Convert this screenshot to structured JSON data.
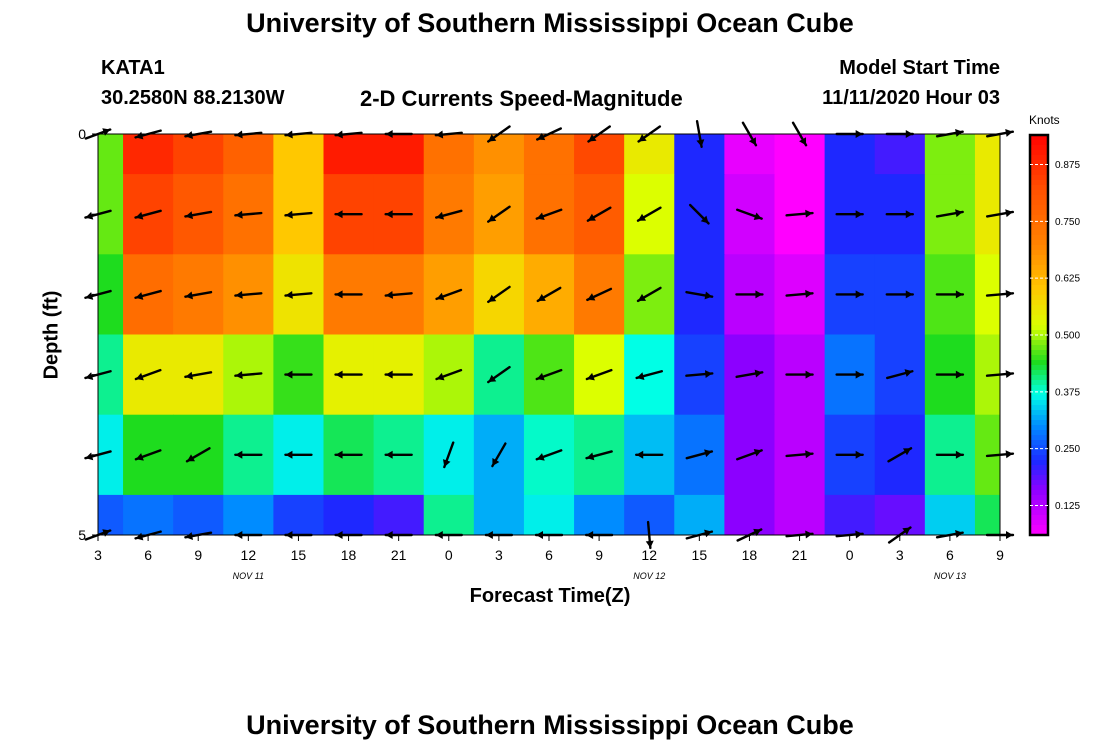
{
  "title_top": "University of Southern Mississippi Ocean Cube",
  "title_bottom": "University of Southern Mississippi Ocean Cube",
  "station": {
    "id": "KATA1",
    "coords": "30.2580N 88.2130W"
  },
  "model": {
    "label": "Model Start Time",
    "value": "11/11/2020 Hour 03"
  },
  "colorbar": {
    "title": "Knots",
    "ticks": [
      "0.875",
      "0.750",
      "0.625",
      "0.500",
      "0.375",
      "0.250",
      "0.125"
    ]
  },
  "chart_data": {
    "type": "heatmap",
    "title": "2-D Currents Speed-Magnitude",
    "xlabel": "Forecast Time(Z)",
    "ylabel": "Depth (ft)",
    "x_ticks": [
      "3",
      "6",
      "9",
      "12",
      "15",
      "18",
      "21",
      "0",
      "3",
      "6",
      "9",
      "12",
      "15",
      "18",
      "21",
      "0",
      "3",
      "6",
      "9"
    ],
    "date_labels": [
      "NOV 11",
      "NOV 12",
      "NOV 13"
    ],
    "date_label_tick_index": [
      3,
      11,
      17
    ],
    "y_ticks": [
      "0",
      "5"
    ],
    "y_range": [
      0,
      5
    ],
    "units": "Knots",
    "value_range": [
      0.06,
      0.94
    ],
    "depth_levels": [
      0,
      1,
      2,
      3,
      4,
      5
    ],
    "time_hours": [
      0,
      3,
      6,
      9,
      12,
      15,
      18,
      21,
      24,
      27,
      30,
      33,
      36,
      39,
      42,
      45,
      48,
      51,
      54
    ],
    "speed": [
      [
        0.47,
        0.88,
        0.84,
        0.78,
        0.6,
        0.9,
        0.9,
        0.74,
        0.68,
        0.74,
        0.83,
        0.55,
        0.22,
        0.08,
        0.06,
        0.22,
        0.2,
        0.48,
        0.55
      ],
      [
        0.47,
        0.84,
        0.8,
        0.74,
        0.6,
        0.84,
        0.84,
        0.72,
        0.66,
        0.74,
        0.79,
        0.52,
        0.22,
        0.1,
        0.06,
        0.22,
        0.22,
        0.48,
        0.55
      ],
      [
        0.44,
        0.75,
        0.72,
        0.68,
        0.56,
        0.72,
        0.72,
        0.66,
        0.58,
        0.64,
        0.72,
        0.48,
        0.22,
        0.12,
        0.09,
        0.24,
        0.24,
        0.46,
        0.52
      ],
      [
        0.4,
        0.55,
        0.55,
        0.5,
        0.45,
        0.54,
        0.54,
        0.5,
        0.4,
        0.46,
        0.52,
        0.37,
        0.24,
        0.16,
        0.12,
        0.28,
        0.24,
        0.44,
        0.5
      ],
      [
        0.36,
        0.44,
        0.44,
        0.4,
        0.36,
        0.42,
        0.4,
        0.36,
        0.32,
        0.38,
        0.4,
        0.33,
        0.28,
        0.16,
        0.12,
        0.24,
        0.22,
        0.4,
        0.47
      ],
      [
        0.26,
        0.28,
        0.26,
        0.3,
        0.24,
        0.22,
        0.2,
        0.4,
        0.32,
        0.36,
        0.3,
        0.26,
        0.32,
        0.16,
        0.12,
        0.2,
        0.18,
        0.34,
        0.42
      ]
    ],
    "direction_deg": [
      [
        20,
        195,
        190,
        185,
        185,
        185,
        180,
        185,
        215,
        205,
        215,
        215,
        280,
        300,
        300,
        0,
        0,
        10,
        10
      ],
      [
        195,
        195,
        190,
        185,
        185,
        180,
        180,
        195,
        215,
        200,
        210,
        210,
        315,
        340,
        5,
        0,
        0,
        10,
        10
      ],
      [
        195,
        195,
        190,
        185,
        185,
        180,
        185,
        200,
        215,
        210,
        205,
        210,
        350,
        0,
        5,
        0,
        0,
        0,
        5
      ],
      [
        195,
        200,
        190,
        185,
        180,
        180,
        180,
        200,
        215,
        200,
        200,
        195,
        5,
        10,
        0,
        0,
        15,
        0,
        5
      ],
      [
        195,
        200,
        210,
        180,
        180,
        180,
        180,
        250,
        240,
        200,
        195,
        180,
        15,
        20,
        5,
        0,
        30,
        0,
        5
      ],
      [
        20,
        195,
        190,
        180,
        180,
        180,
        180,
        180,
        180,
        180,
        180,
        275,
        15,
        25,
        5,
        5,
        35,
        10,
        0
      ]
    ]
  }
}
